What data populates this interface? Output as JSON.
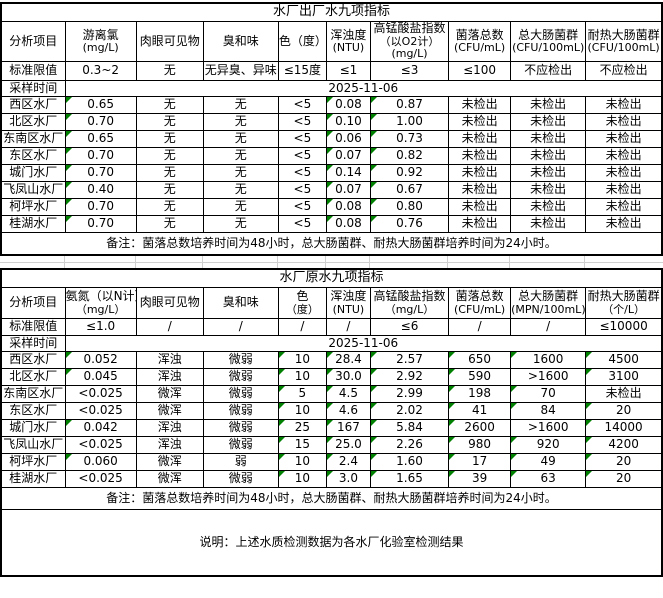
{
  "colors": {
    "flag_green": "#008000",
    "gridline_gray": "#d0d0d0",
    "border_black": "#000000"
  },
  "footer_note": "说明：上述水质检测数据为各水厂化验室检测结果",
  "tables": [
    {
      "title": "水厂出厂水九项指标",
      "corner_label": "分析项目",
      "columns": [
        [
          "游离氯",
          "(mg/L)"
        ],
        [
          "肉眼可见物"
        ],
        [
          "臭和味"
        ],
        [
          "色（度）"
        ],
        [
          "浑浊度",
          "(NTU)"
        ],
        [
          "高锰酸盐指数",
          "（以O2计）",
          "(mg/L)"
        ],
        [
          "菌落总数",
          "(CFU/mL)"
        ],
        [
          "总大肠菌群",
          "(CFU/100mL)"
        ],
        [
          "耐热大肠菌群",
          "(CFU/100mL)"
        ]
      ],
      "limit_label": "标准限值",
      "limits": [
        "0.3~2",
        "无",
        "无异臭、异味",
        "≤15度",
        "≤1",
        "≤3",
        "≤100",
        "不应检出",
        "不应检出"
      ],
      "sample_label": "采样时间",
      "sample_date": "2025-11-06",
      "rows": [
        {
          "name": "西区水厂",
          "values": [
            "0.65",
            "无",
            "无",
            "<5",
            "0.08",
            "0.87",
            "未检出",
            "未检出",
            "未检出"
          ],
          "flags": [
            1,
            0,
            0,
            0,
            1,
            1,
            0,
            0,
            0
          ]
        },
        {
          "name": "北区水厂",
          "values": [
            "0.70",
            "无",
            "无",
            "<5",
            "0.10",
            "1.00",
            "未检出",
            "未检出",
            "未检出"
          ],
          "flags": [
            1,
            0,
            0,
            0,
            1,
            1,
            0,
            0,
            0
          ]
        },
        {
          "name": "东南区水厂",
          "values": [
            "0.65",
            "无",
            "无",
            "<5",
            "0.06",
            "0.73",
            "未检出",
            "未检出",
            "未检出"
          ],
          "flags": [
            1,
            0,
            0,
            0,
            1,
            1,
            0,
            0,
            0
          ]
        },
        {
          "name": "东区水厂",
          "values": [
            "0.70",
            "无",
            "无",
            "<5",
            "0.07",
            "0.82",
            "未检出",
            "未检出",
            "未检出"
          ],
          "flags": [
            1,
            0,
            0,
            0,
            1,
            1,
            0,
            0,
            0
          ]
        },
        {
          "name": "城门水厂",
          "values": [
            "0.70",
            "无",
            "无",
            "<5",
            "0.14",
            "0.92",
            "未检出",
            "未检出",
            "未检出"
          ],
          "flags": [
            1,
            0,
            0,
            0,
            1,
            1,
            0,
            0,
            0
          ]
        },
        {
          "name": "飞凤山水厂",
          "values": [
            "0.40",
            "无",
            "无",
            "<5",
            "0.07",
            "0.67",
            "未检出",
            "未检出",
            "未检出"
          ],
          "flags": [
            1,
            0,
            0,
            0,
            1,
            1,
            0,
            0,
            0
          ]
        },
        {
          "name": "柯坪水厂",
          "values": [
            "0.70",
            "无",
            "无",
            "<5",
            "0.08",
            "0.80",
            "未检出",
            "未检出",
            "未检出"
          ],
          "flags": [
            1,
            0,
            0,
            0,
            1,
            1,
            0,
            0,
            0
          ]
        },
        {
          "name": "桂湖水厂",
          "values": [
            "0.70",
            "无",
            "无",
            "<5",
            "0.08",
            "0.76",
            "未检出",
            "未检出",
            "未检出"
          ],
          "flags": [
            1,
            0,
            0,
            0,
            1,
            1,
            0,
            0,
            0
          ]
        }
      ],
      "note": "备注：菌落总数培养时间为48小时，总大肠菌群、耐热大肠菌群培养时间为24小时。"
    },
    {
      "title": "水厂原水九项指标",
      "corner_label": "分析项目",
      "columns": [
        [
          "氨氮（以N计）",
          "（mg/L）"
        ],
        [
          "肉眼可见物"
        ],
        [
          "臭和味"
        ],
        [
          "色",
          "（度）"
        ],
        [
          "浑浊度",
          "(NTU)"
        ],
        [
          "高锰酸盐指数",
          "（mg/L）"
        ],
        [
          "菌落总数",
          "(CFU/mL)"
        ],
        [
          "总大肠菌群",
          "(MPN/100mL)"
        ],
        [
          "耐热大肠菌群",
          "（个/L）"
        ]
      ],
      "limit_label": "标准限值",
      "limits": [
        "≤1.0",
        "/",
        "/",
        "/",
        "/",
        "≤6",
        "/",
        "/",
        "≤10000"
      ],
      "sample_label": "采样时间",
      "sample_date": "2025-11-06",
      "rows": [
        {
          "name": "西区水厂",
          "values": [
            "0.052",
            "浑浊",
            "微弱",
            "10",
            "28.4",
            "2.57",
            "650",
            "1600",
            "4500"
          ],
          "flags": [
            1,
            0,
            0,
            1,
            1,
            1,
            1,
            1,
            1
          ]
        },
        {
          "name": "北区水厂",
          "values": [
            "0.045",
            "浑浊",
            "微弱",
            "10",
            "30.0",
            "2.92",
            "590",
            ">1600",
            "3100"
          ],
          "flags": [
            1,
            0,
            0,
            1,
            1,
            1,
            1,
            0,
            1
          ]
        },
        {
          "name": "东南区水厂",
          "values": [
            "<0.025",
            "微浑",
            "微弱",
            "5",
            "4.5",
            "2.99",
            "198",
            "70",
            "未检出"
          ],
          "flags": [
            0,
            0,
            0,
            1,
            1,
            1,
            1,
            1,
            0
          ]
        },
        {
          "name": "东区水厂",
          "values": [
            "<0.025",
            "微浑",
            "微弱",
            "10",
            "4.6",
            "2.02",
            "41",
            "84",
            "20"
          ],
          "flags": [
            0,
            0,
            0,
            1,
            1,
            1,
            1,
            1,
            1
          ]
        },
        {
          "name": "城门水厂",
          "values": [
            "0.042",
            "浑浊",
            "微弱",
            "25",
            "167",
            "5.84",
            "2600",
            ">1600",
            "14000"
          ],
          "flags": [
            1,
            0,
            0,
            1,
            1,
            1,
            1,
            0,
            1
          ]
        },
        {
          "name": "飞凤山水厂",
          "values": [
            "<0.025",
            "浑浊",
            "微弱",
            "15",
            "25.0",
            "2.26",
            "980",
            "920",
            "4200"
          ],
          "flags": [
            0,
            0,
            0,
            1,
            1,
            1,
            1,
            1,
            1
          ]
        },
        {
          "name": "柯坪水厂",
          "values": [
            "0.060",
            "微浑",
            "弱",
            "10",
            "2.4",
            "1.60",
            "17",
            "49",
            "20"
          ],
          "flags": [
            1,
            0,
            0,
            1,
            1,
            1,
            1,
            1,
            1
          ]
        },
        {
          "name": "桂湖水厂",
          "values": [
            "<0.025",
            "微浑",
            "微弱",
            "10",
            "3.0",
            "1.65",
            "39",
            "63",
            "20"
          ],
          "flags": [
            0,
            0,
            0,
            1,
            1,
            1,
            1,
            1,
            1
          ]
        }
      ],
      "note": "备注：菌落总数培养时间为48小时，总大肠菌群、耐热大肠菌群培养时间为24小时。"
    }
  ]
}
